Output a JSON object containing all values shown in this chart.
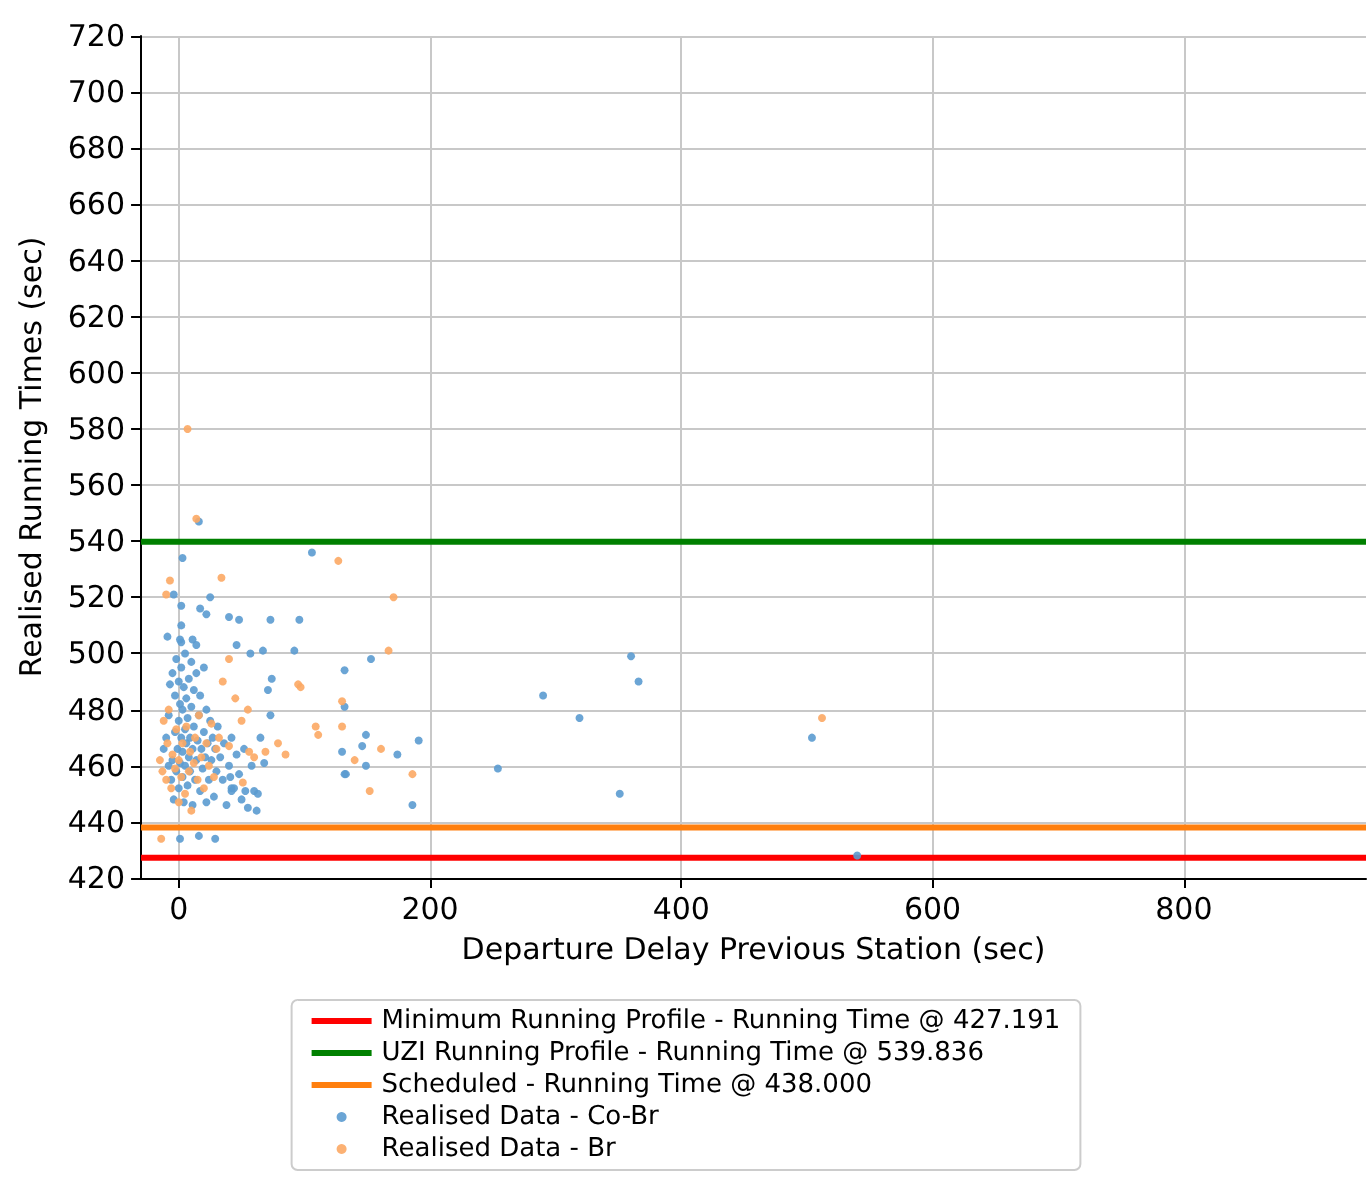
{
  "chart_data": {
    "type": "scatter",
    "xlabel": "Departure Delay Previous Station (sec)",
    "ylabel": "Realised Running Times (sec)",
    "xlim": [
      -30,
      945
    ],
    "xticks": [
      0,
      200,
      400,
      600,
      800
    ],
    "ylim": [
      420,
      720
    ],
    "yticks": [
      420,
      440,
      460,
      480,
      500,
      520,
      540,
      560,
      580,
      600,
      620,
      640,
      660,
      680,
      700,
      720
    ],
    "grid": true,
    "legend": "bottom",
    "marker": "circle",
    "ref_lines": [
      {
        "axis": "y",
        "value": 427.191,
        "label": "Minimum Running Profile - Running Time @ 427.191",
        "color": "#ff0000",
        "line_style": "solid"
      },
      {
        "axis": "y",
        "value": 539.836,
        "label": "UZI Running Profile - Running Time @ 539.836",
        "color": "#008000",
        "line_style": "solid"
      },
      {
        "axis": "y",
        "value": 438,
        "label": "Scheduled - Running Time @ 438.000",
        "color": "#ff7f0e",
        "line_style": "solid"
      }
    ],
    "series": [
      {
        "name": "Realised Data - Co-Br",
        "color": "#5b9bd0",
        "x": [
          16,
          3,
          -4,
          25,
          2,
          17,
          22,
          40,
          48,
          73,
          96,
          -9,
          2,
          2,
          11,
          14,
          46,
          67,
          92,
          57,
          132,
          74,
          71,
          132,
          73,
          130,
          132,
          68,
          41,
          42,
          42,
          53,
          60,
          63,
          1,
          16,
          29,
          106,
          153,
          290,
          149,
          146,
          191,
          174,
          149,
          133,
          186,
          254,
          360,
          366,
          319,
          351,
          504,
          540,
          -12,
          -10,
          -8,
          -8,
          -7,
          -6,
          -5,
          -5,
          -4,
          -3,
          -3,
          -2,
          -2,
          -1,
          0,
          0,
          0,
          1,
          1,
          1,
          2,
          2,
          3,
          3,
          3,
          4,
          4,
          5,
          5,
          5,
          6,
          6,
          7,
          7,
          8,
          8,
          9,
          9,
          10,
          10,
          11,
          11,
          12,
          12,
          13,
          14,
          14,
          15,
          16,
          17,
          17,
          18,
          19,
          20,
          20,
          21,
          22,
          22,
          23,
          24,
          25,
          26,
          27,
          28,
          29,
          30,
          31,
          33,
          35,
          36,
          38,
          40,
          42,
          44,
          46,
          48,
          50,
          52,
          55,
          58,
          62,
          65
        ],
        "values": [
          547,
          534,
          521,
          520,
          517,
          516,
          514,
          513,
          512,
          512,
          512,
          506,
          510,
          504,
          505,
          503,
          503,
          501,
          501,
          500,
          494,
          491,
          487,
          481,
          478,
          465,
          457,
          461,
          456,
          452,
          451,
          451,
          451,
          450,
          434,
          435,
          434,
          536,
          498,
          485,
          471,
          467,
          469,
          464,
          460,
          457,
          446,
          459,
          499,
          490,
          477,
          450,
          470,
          428,
          466,
          470,
          460,
          478,
          489,
          455,
          462,
          493,
          448,
          472,
          485,
          458,
          498,
          466,
          452,
          476,
          490,
          461,
          482,
          505,
          470,
          495,
          456,
          465,
          480,
          447,
          488,
          460,
          473,
          500,
          468,
          484,
          453,
          477,
          463,
          491,
          458,
          470,
          481,
          497,
          446,
          466,
          474,
          487,
          455,
          462,
          493,
          469,
          478,
          451,
          485,
          466,
          459,
          472,
          495,
          463,
          447,
          480,
          468,
          455,
          476,
          462,
          470,
          449,
          466,
          458,
          474,
          463,
          455,
          468,
          446,
          460,
          470,
          452,
          464,
          457,
          448,
          466,
          445,
          460,
          444,
          470
        ]
      },
      {
        "name": "Realised Data - Br",
        "color": "#fca864",
        "x": [
          7,
          14,
          -7,
          -10,
          34,
          127,
          40,
          95,
          97,
          130,
          109,
          111,
          130,
          79,
          85,
          40,
          56,
          69,
          51,
          -14,
          171,
          167,
          161,
          140,
          186,
          152,
          -15,
          -13,
          -12,
          -10,
          -9,
          -8,
          -6,
          -5,
          -3,
          -2,
          0,
          0,
          2,
          3,
          5,
          6,
          8,
          9,
          10,
          12,
          13,
          15,
          16,
          18,
          20,
          22,
          24,
          26,
          28,
          30,
          32,
          35,
          45,
          50,
          55,
          60,
          512
        ],
        "values": [
          580,
          548,
          526,
          521,
          527,
          533,
          498,
          489,
          488,
          483,
          474,
          471,
          474,
          468,
          464,
          467,
          465,
          465,
          454,
          434,
          520,
          501,
          466,
          462,
          457,
          451,
          462,
          458,
          476,
          455,
          468,
          480,
          452,
          464,
          459,
          473,
          447,
          462,
          456,
          468,
          450,
          474,
          458,
          465,
          444,
          461,
          470,
          455,
          478,
          463,
          452,
          468,
          460,
          475,
          456,
          466,
          470,
          490,
          484,
          476,
          480,
          463,
          477
        ]
      }
    ]
  }
}
